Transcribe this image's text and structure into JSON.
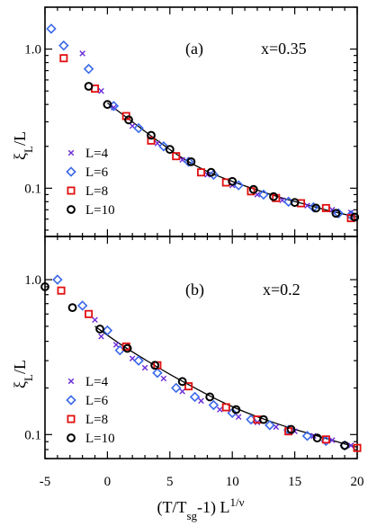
{
  "figure": {
    "x_axis_label": "(T/T",
    "x_axis_label_sub": "sg",
    "x_axis_label_tail": "-1) L",
    "x_axis_label_sup": "1/ν",
    "y_axis_label": "ξ",
    "y_axis_label_sub": "L",
    "y_axis_label_tail": "/L",
    "x_ticks": [
      "-5",
      "0",
      "5",
      "10",
      "15",
      "20"
    ],
    "y_ticks": [
      "0.1",
      "1.0"
    ]
  },
  "colors": {
    "L4": "#6a2bd9",
    "L6": "#3a68e8",
    "L8": "#e01010",
    "L10": "#000000"
  },
  "chart_data": [
    {
      "type": "scatter",
      "panel": "(a)",
      "annotation": "x=0.35",
      "xlim": [
        -5,
        20
      ],
      "ylim": [
        0.045,
        2.0
      ],
      "yscale": "log",
      "legend_position": "bottom-left",
      "series": [
        {
          "name": "L=4",
          "marker": "cross",
          "color_key": "L4",
          "x": [
            -2.0,
            -0.5,
            0.5,
            2.0,
            4.0,
            6.0,
            8.0,
            10.0,
            12.0,
            14.0,
            16.0,
            18.0,
            19.5
          ],
          "y": [
            0.93,
            0.5,
            0.38,
            0.28,
            0.21,
            0.16,
            0.125,
            0.105,
            0.09,
            0.082,
            0.075,
            0.07,
            0.067
          ]
        },
        {
          "name": "L=6",
          "marker": "diamond",
          "color_key": "L6",
          "x": [
            -4.5,
            -3.5,
            -1.5,
            0.5,
            2.5,
            4.5,
            6.5,
            8.5,
            10.5,
            12.5,
            14.5,
            16.5,
            18.5,
            19.5
          ],
          "y": [
            1.4,
            1.06,
            0.72,
            0.39,
            0.27,
            0.2,
            0.155,
            0.125,
            0.105,
            0.09,
            0.08,
            0.073,
            0.066,
            0.064
          ]
        },
        {
          "name": "L=8",
          "marker": "square",
          "color_key": "L8",
          "x": [
            -3.5,
            -1.0,
            1.5,
            3.5,
            5.5,
            7.5,
            9.5,
            11.5,
            13.5,
            15.5,
            17.5,
            19.5
          ],
          "y": [
            0.86,
            0.52,
            0.33,
            0.22,
            0.17,
            0.13,
            0.11,
            0.095,
            0.085,
            0.078,
            0.072,
            0.061
          ]
        },
        {
          "name": "L=10",
          "marker": "circle",
          "color_key": "L10",
          "x": [
            -1.5,
            0.0,
            1.7,
            3.5,
            5.0,
            6.7,
            8.3,
            10.0,
            11.7,
            13.3,
            15.0,
            16.7,
            18.3,
            19.8
          ],
          "y": [
            0.54,
            0.4,
            0.31,
            0.24,
            0.19,
            0.155,
            0.13,
            0.112,
            0.098,
            0.087,
            0.079,
            0.072,
            0.066,
            0.062
          ]
        }
      ],
      "fit_curve": {
        "x": [
          0,
          2,
          4,
          6,
          8,
          10,
          12,
          14,
          16,
          18,
          20
        ],
        "y": [
          0.41,
          0.3,
          0.22,
          0.165,
          0.132,
          0.112,
          0.097,
          0.085,
          0.076,
          0.068,
          0.062
        ]
      }
    },
    {
      "type": "scatter",
      "panel": "(b)",
      "annotation": "x=0.2",
      "xlim": [
        -5,
        20
      ],
      "ylim": [
        0.07,
        1.9
      ],
      "yscale": "log",
      "legend_position": "bottom-left",
      "series": [
        {
          "name": "L=4",
          "marker": "cross",
          "color_key": "L4",
          "x": [
            -1.0,
            -0.5,
            0.7,
            2.0,
            3.0,
            4.5,
            6.0,
            7.5,
            9.0,
            10.5,
            12.0,
            13.5,
            15.0,
            16.5,
            18.0,
            19.5
          ],
          "y": [
            0.55,
            0.43,
            0.38,
            0.31,
            0.27,
            0.23,
            0.19,
            0.165,
            0.145,
            0.13,
            0.12,
            0.112,
            0.105,
            0.098,
            0.092,
            0.085
          ]
        },
        {
          "name": "L=6",
          "marker": "diamond",
          "color_key": "L6",
          "x": [
            -4.0,
            -2.0,
            0.0,
            1.0,
            2.5,
            4.0,
            5.5,
            7.0,
            8.5,
            10.0,
            11.5,
            13.0,
            14.5,
            16.0,
            17.5,
            19.0
          ],
          "y": [
            1.0,
            0.68,
            0.47,
            0.35,
            0.3,
            0.25,
            0.2,
            0.175,
            0.155,
            0.138,
            0.125,
            0.115,
            0.107,
            0.098,
            0.091,
            0.085
          ]
        },
        {
          "name": "L=8",
          "marker": "square",
          "color_key": "L8",
          "x": [
            -3.7,
            -1.5,
            1.5,
            4.0,
            6.5,
            9.5,
            12.0,
            14.5,
            17.5,
            20.0
          ],
          "y": [
            0.85,
            0.6,
            0.37,
            0.28,
            0.205,
            0.15,
            0.125,
            0.105,
            0.093,
            0.082
          ]
        },
        {
          "name": "L=10",
          "marker": "circle",
          "color_key": "L10",
          "x": [
            -5.0,
            -2.8,
            -0.6,
            1.6,
            3.8,
            6.0,
            8.2,
            10.3,
            12.5,
            14.7,
            16.8,
            19.0
          ],
          "y": [
            0.9,
            0.66,
            0.48,
            0.36,
            0.28,
            0.22,
            0.175,
            0.145,
            0.125,
            0.108,
            0.095,
            0.085
          ]
        }
      ],
      "fit_curve": {
        "x": [
          -1,
          1,
          3,
          5,
          7,
          9,
          11,
          13,
          15,
          17,
          19,
          20
        ],
        "y": [
          0.5,
          0.385,
          0.305,
          0.245,
          0.2,
          0.165,
          0.14,
          0.122,
          0.108,
          0.097,
          0.087,
          0.083
        ]
      }
    }
  ]
}
